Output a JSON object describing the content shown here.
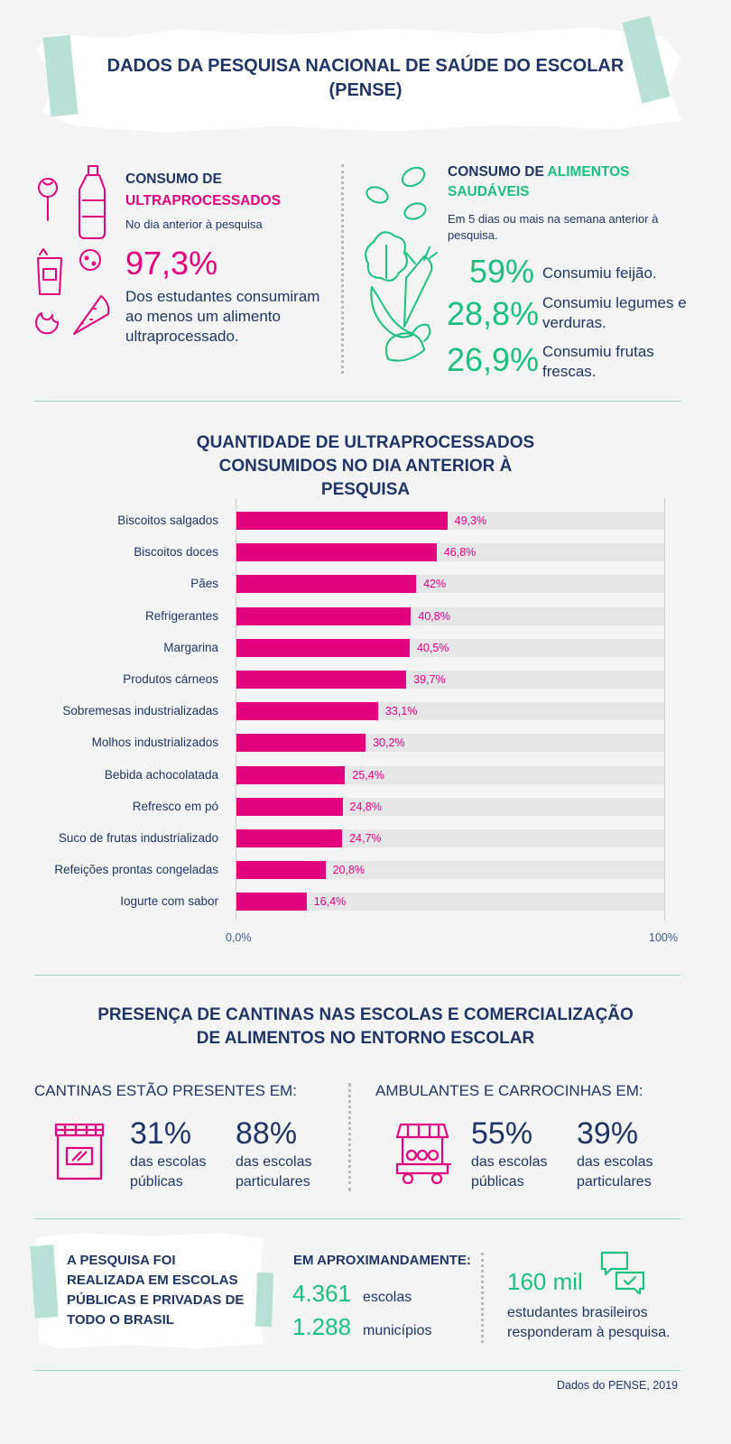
{
  "header": {
    "title": "DADOS DA PESQUISA NACIONAL DE SAÚDE DO ESCOLAR (PENSE)"
  },
  "ultra": {
    "heading_line1": "CONSUMO DE",
    "heading_line2": "ULTRAPROCESSADOS",
    "subtitle": "No dia anterior à pesquisa",
    "value": "97,3%",
    "description": "Dos estudantes consumiram ao menos um alimento ultraprocessado."
  },
  "healthy": {
    "heading_prefix": "CONSUMO DE",
    "heading_highlight1": "ALIMENTOS",
    "heading_highlight2": "SAUDÁVEIS",
    "subtitle": "Em 5 dias ou mais na semana anterior à pesquisa.",
    "items": [
      {
        "value": "59%",
        "label": "Consumiu feijão."
      },
      {
        "value": "28,8%",
        "label": "Consumiu legumes e verduras."
      },
      {
        "value": "26,9%",
        "label": "Consumiu frutas frescas."
      }
    ]
  },
  "chart_data": {
    "type": "bar",
    "orientation": "horizontal",
    "title": "QUANTIDADE DE ULTRAPROCESSADOS CONSUMIDOS NO DIA ANTERIOR À PESQUISA",
    "categories": [
      "Biscoitos salgados",
      "Biscoitos doces",
      "Pães",
      "Refrigerantes",
      "Margarina",
      "Produtos cárneos",
      "Sobremesas industrializadas",
      "Molhos industrializados",
      "Bebida achocolatada",
      "Refresco em pó",
      "Suco de frutas industrializado",
      "Refeições prontas congeladas",
      "Iogurte com sabor"
    ],
    "values": [
      49.3,
      46.8,
      42,
      40.8,
      40.5,
      39.7,
      33.1,
      30.2,
      25.4,
      24.8,
      24.7,
      20.8,
      16.4
    ],
    "value_labels": [
      "49,3%",
      "46,8%",
      "42%",
      "40,8%",
      "40,5%",
      "39,7%",
      "33,1%",
      "30,2%",
      "25,4%",
      "24,8%",
      "24,7%",
      "20,8%",
      "16,4%"
    ],
    "xlim": [
      0,
      100
    ],
    "axis_labels": [
      "0,0%",
      "100%"
    ],
    "bar_color": "#e3007f",
    "track_color": "#e6e6e7"
  },
  "cantinas": {
    "title": "PRESENÇA DE CANTINAS NAS ESCOLAS E COMERCIALIZAÇÃO DE ALIMENTOS NO ENTORNO ESCOLAR",
    "left_heading": "CANTINAS ESTÃO PRESENTES EM:",
    "left_items": [
      {
        "value": "31%",
        "label": "das escolas públicas"
      },
      {
        "value": "88%",
        "label": "das escolas particulares"
      }
    ],
    "right_heading": "AMBULANTES E CARROCINHAS EM:",
    "right_items": [
      {
        "value": "55%",
        "label": "das escolas públicas"
      },
      {
        "value": "39%",
        "label": "das escolas particulares"
      }
    ]
  },
  "footer": {
    "note": "A PESQUISA FOI REALIZADA EM ESCOLAS PÚBLICAS E PRIVADAS DE TODO O BRASIL",
    "approx_heading": "EM APROXIMANDAMENTE:",
    "schools_value": "4.361",
    "schools_label": "escolas",
    "cities_value": "1.288",
    "cities_label": "municípios",
    "students_value": "160 mil",
    "students_label": "estudantes brasileiros responderam à pesquisa.",
    "source": "Dados do PENSE, 2019"
  },
  "colors": {
    "navy": "#1f3566",
    "pink": "#e3007f",
    "green": "#1bbf80",
    "divider": "#9fd9c5"
  }
}
